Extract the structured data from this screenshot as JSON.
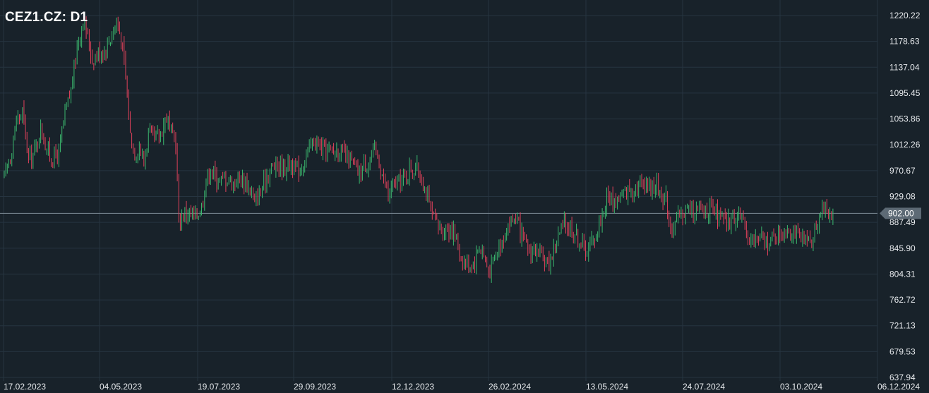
{
  "chart_data": {
    "type": "candlestick",
    "title": "CEZ1.CZ: D1",
    "ylim": [
      637.94,
      1230
    ],
    "y_ticks": [
      "1220.22",
      "1178.63",
      "1137.04",
      "1095.45",
      "1053.86",
      "1012.26",
      "970.67",
      "929.08",
      "887.49",
      "845.90",
      "804.31",
      "762.72",
      "721.13",
      "679.53",
      "637.94"
    ],
    "x_ticks": [
      "17.02.2023",
      "04.05.2023",
      "19.07.2023",
      "29.09.2023",
      "12.12.2023",
      "26.02.2024",
      "13.05.2024",
      "24.07.2024",
      "03.10.2024",
      "06.12.2024"
    ],
    "current_price": 902.0,
    "current_price_label": "902.00",
    "grid": true,
    "colors": {
      "background": "#18222a",
      "grid": "#263440",
      "up": "#3bb86e",
      "down": "#e0415b",
      "price_line": "#7d8b97",
      "price_tag": "#5d6a75",
      "text": "#e6e9ec"
    },
    "price_anchors": [
      [
        0,
        960
      ],
      [
        4,
        995
      ],
      [
        8,
        1050
      ],
      [
        12,
        1065
      ],
      [
        16,
        990
      ],
      [
        20,
        1000
      ],
      [
        24,
        1040
      ],
      [
        28,
        1005
      ],
      [
        32,
        990
      ],
      [
        36,
        1000
      ],
      [
        40,
        1060
      ],
      [
        44,
        1100
      ],
      [
        48,
        1170
      ],
      [
        52,
        1215
      ],
      [
        55,
        1185
      ],
      [
        58,
        1150
      ],
      [
        62,
        1160
      ],
      [
        66,
        1165
      ],
      [
        70,
        1185
      ],
      [
        74,
        1210
      ],
      [
        77,
        1185
      ],
      [
        80,
        1120
      ],
      [
        83,
        1030
      ],
      [
        86,
        1000
      ],
      [
        89,
        1010
      ],
      [
        92,
        985
      ],
      [
        95,
        1030
      ],
      [
        99,
        1020
      ],
      [
        103,
        1030
      ],
      [
        107,
        1060
      ],
      [
        110,
        1030
      ],
      [
        113,
        1015
      ],
      [
        115,
        890
      ],
      [
        118,
        900
      ],
      [
        121,
        905
      ],
      [
        124,
        895
      ],
      [
        127,
        900
      ],
      [
        130,
        915
      ],
      [
        133,
        955
      ],
      [
        136,
        975
      ],
      [
        139,
        960
      ],
      [
        143,
        955
      ],
      [
        147,
        960
      ],
      [
        151,
        950
      ],
      [
        155,
        960
      ],
      [
        158,
        955
      ],
      [
        161,
        945
      ],
      [
        163,
        935
      ],
      [
        165,
        915
      ],
      [
        167,
        930
      ],
      [
        170,
        940
      ],
      [
        173,
        965
      ],
      [
        176,
        975
      ],
      [
        180,
        980
      ],
      [
        184,
        975
      ],
      [
        188,
        985
      ],
      [
        192,
        970
      ],
      [
        195,
        975
      ],
      [
        198,
        990
      ],
      [
        201,
        1005
      ],
      [
        204,
        1020
      ],
      [
        207,
        1010
      ],
      [
        210,
        1005
      ],
      [
        213,
        1005
      ],
      [
        216,
        1000
      ],
      [
        219,
        1005
      ],
      [
        222,
        1000
      ],
      [
        225,
        990
      ],
      [
        228,
        985
      ],
      [
        231,
        975
      ],
      [
        234,
        965
      ],
      [
        236,
        975
      ],
      [
        239,
        985
      ],
      [
        242,
        995
      ],
      [
        245,
        1000
      ],
      [
        247,
        985
      ],
      [
        250,
        955
      ],
      [
        253,
        930
      ],
      [
        256,
        945
      ],
      [
        259,
        950
      ],
      [
        262,
        955
      ],
      [
        265,
        965
      ],
      [
        268,
        975
      ],
      [
        271,
        975
      ],
      [
        274,
        965
      ],
      [
        277,
        945
      ],
      [
        280,
        915
      ],
      [
        283,
        890
      ],
      [
        286,
        880
      ],
      [
        289,
        875
      ],
      [
        292,
        880
      ],
      [
        295,
        875
      ],
      [
        298,
        860
      ],
      [
        301,
        830
      ],
      [
        304,
        820
      ],
      [
        307,
        820
      ],
      [
        310,
        825
      ],
      [
        313,
        850
      ],
      [
        316,
        835
      ],
      [
        319,
        810
      ],
      [
        322,
        820
      ],
      [
        325,
        845
      ],
      [
        328,
        860
      ],
      [
        331,
        880
      ],
      [
        334,
        890
      ],
      [
        337,
        895
      ],
      [
        340,
        870
      ],
      [
        343,
        850
      ],
      [
        346,
        840
      ],
      [
        349,
        845
      ],
      [
        352,
        835
      ],
      [
        355,
        825
      ],
      [
        358,
        820
      ],
      [
        361,
        835
      ],
      [
        364,
        860
      ],
      [
        367,
        875
      ],
      [
        370,
        885
      ],
      [
        373,
        880
      ],
      [
        376,
        870
      ],
      [
        379,
        860
      ],
      [
        382,
        845
      ],
      [
        385,
        845
      ],
      [
        388,
        860
      ],
      [
        391,
        875
      ],
      [
        394,
        900
      ],
      [
        397,
        925
      ],
      [
        400,
        925
      ],
      [
        403,
        920
      ],
      [
        406,
        930
      ],
      [
        409,
        935
      ],
      [
        412,
        940
      ],
      [
        415,
        945
      ],
      [
        418,
        945
      ],
      [
        421,
        955
      ],
      [
        424,
        950
      ],
      [
        427,
        945
      ],
      [
        430,
        945
      ],
      [
        433,
        935
      ],
      [
        436,
        925
      ],
      [
        439,
        880
      ],
      [
        442,
        885
      ],
      [
        445,
        895
      ],
      [
        448,
        905
      ],
      [
        451,
        910
      ],
      [
        454,
        905
      ],
      [
        457,
        905
      ],
      [
        460,
        905
      ],
      [
        463,
        910
      ],
      [
        466,
        905
      ],
      [
        469,
        900
      ],
      [
        472,
        895
      ],
      [
        475,
        885
      ],
      [
        478,
        890
      ],
      [
        481,
        895
      ],
      [
        484,
        905
      ],
      [
        487,
        880
      ],
      [
        490,
        870
      ],
      [
        493,
        860
      ],
      [
        496,
        860
      ],
      [
        499,
        860
      ],
      [
        502,
        857
      ],
      [
        505,
        860
      ],
      [
        508,
        865
      ],
      [
        511,
        870
      ],
      [
        514,
        875
      ],
      [
        517,
        880
      ],
      [
        520,
        875
      ],
      [
        523,
        862
      ],
      [
        526,
        857
      ],
      [
        529,
        857
      ],
      [
        532,
        860
      ],
      [
        535,
        880
      ],
      [
        538,
        910
      ],
      [
        541,
        905
      ],
      [
        544,
        905
      ],
      [
        547,
        903
      ],
      [
        550,
        902
      ],
      [
        553,
        902
      ]
    ]
  }
}
